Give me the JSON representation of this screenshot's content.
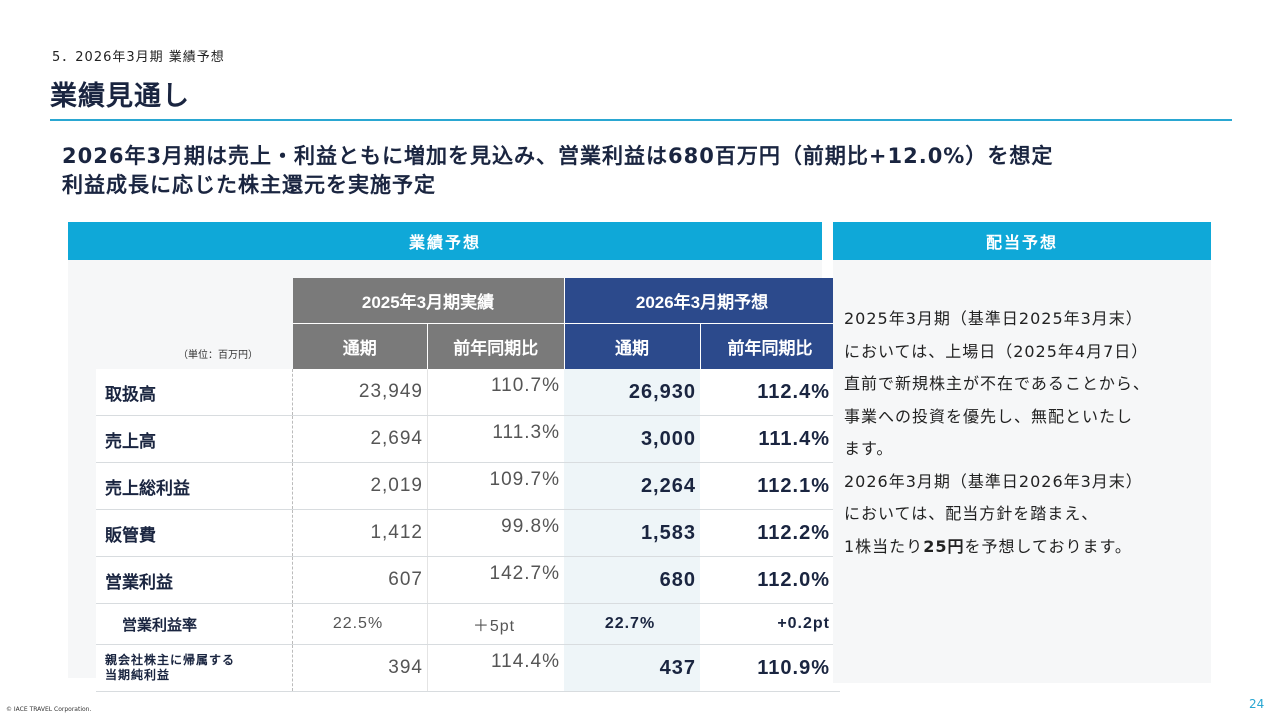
{
  "section": "5．2026年3月期 業績予想",
  "title": "業績見通し",
  "headline": {
    "line1": "2026年3月期は売上・利益ともに増加を見込み、営業利益は680百万円（前期比+12.0%）を想定",
    "line2": "利益成長に応じた株主還元を実施予定"
  },
  "performance": {
    "panel_title": "業績予想",
    "unit": "（単位：百万円）",
    "group_actual": "2025年3月期実績",
    "group_forecast": "2026年3月期予想",
    "col_full_year": "通期",
    "col_yoy": "前年同期比",
    "rows": [
      {
        "label": "取扱高",
        "actual": "23,949",
        "actual_yoy": "110.7%",
        "forecast": "26,930",
        "forecast_yoy": "112.4%"
      },
      {
        "label": "売上高",
        "actual": "2,694",
        "actual_yoy": "111.3%",
        "forecast": "3,000",
        "forecast_yoy": "111.4%"
      },
      {
        "label": "売上総利益",
        "actual": "2,019",
        "actual_yoy": "109.7%",
        "forecast": "2,264",
        "forecast_yoy": "112.1%"
      },
      {
        "label": "販管費",
        "actual": "1,412",
        "actual_yoy": "99.8%",
        "forecast": "1,583",
        "forecast_yoy": "112.2%"
      },
      {
        "label": "営業利益",
        "actual": "607",
        "actual_yoy": "142.7%",
        "forecast": "680",
        "forecast_yoy": "112.0%"
      },
      {
        "label": "営業利益率",
        "actual": "22.5%",
        "actual_yoy": "＋5pt",
        "forecast": "22.7%",
        "forecast_yoy": "+0.2pt"
      },
      {
        "label_line1": "親会社株主に帰属する",
        "label_line2": "当期純利益",
        "actual": "394",
        "actual_yoy": "114.4%",
        "forecast": "437",
        "forecast_yoy": "110.9%"
      }
    ]
  },
  "dividend": {
    "panel_title": "配当予想",
    "lines": [
      "2025年3月期（基準日2025年3月末）",
      "においては、上場日（2025年4月7日）",
      "直前で新規株主が不在であることから、",
      "事業への投資を優先し、無配といたし",
      "ます。",
      "2026年3月期（基準日2026年3月末）",
      "においては、配当方針を踏まえ、"
    ],
    "last_line_pre": "1株当たり",
    "last_line_bold": "25円",
    "last_line_post": "を予想しております。"
  },
  "footer": {
    "copyright": "© IACE TRAVEL Corporation.",
    "page_number": "24"
  }
}
